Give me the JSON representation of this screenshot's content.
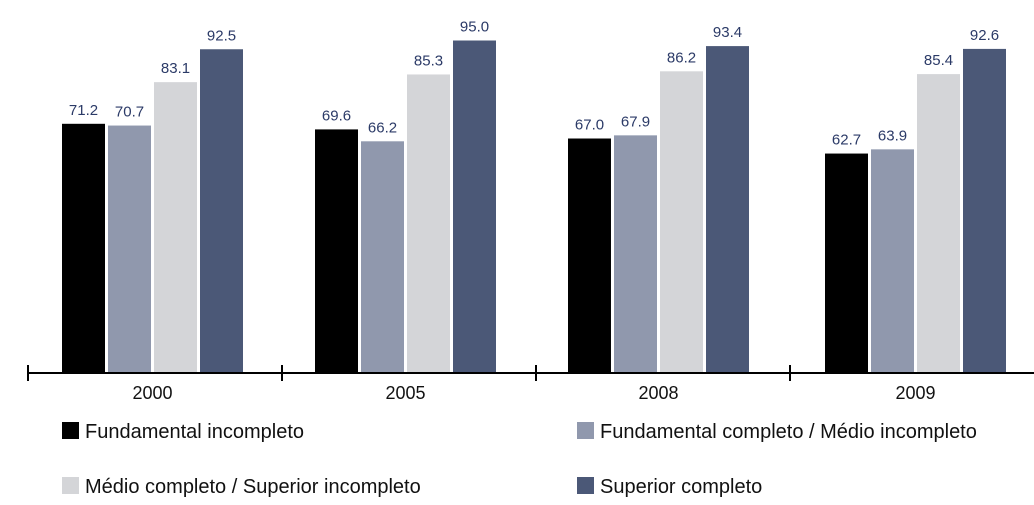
{
  "chart_data": {
    "type": "bar",
    "categories": [
      "2000",
      "2005",
      "2008",
      "2009"
    ],
    "series": [
      {
        "name": "Fundamental incompleto",
        "color": "#000000",
        "values": [
          71.2,
          69.6,
          67.0,
          62.7
        ]
      },
      {
        "name": "Fundamental completo / Médio incompleto",
        "color": "#9098ad",
        "values": [
          70.7,
          66.2,
          67.9,
          63.9
        ]
      },
      {
        "name": "Médio completo / Superior incompleto",
        "color": "#d4d5d8",
        "values": [
          83.1,
          85.3,
          86.2,
          85.4
        ]
      },
      {
        "name": "Superior completo",
        "color": "#4b5877",
        "values": [
          92.5,
          95.0,
          93.4,
          92.6
        ]
      }
    ],
    "value_labels": [
      [
        "71.2",
        "69.6",
        "67.0",
        "62.7"
      ],
      [
        "70.7",
        "66.2",
        "67.9",
        "63.9"
      ],
      [
        "83.1",
        "85.3",
        "86.2",
        "85.4"
      ],
      [
        "92.5",
        "95.0",
        "93.4",
        "92.6"
      ]
    ],
    "ylim": [
      0,
      100
    ],
    "legend_position": "bottom",
    "grid": false
  }
}
